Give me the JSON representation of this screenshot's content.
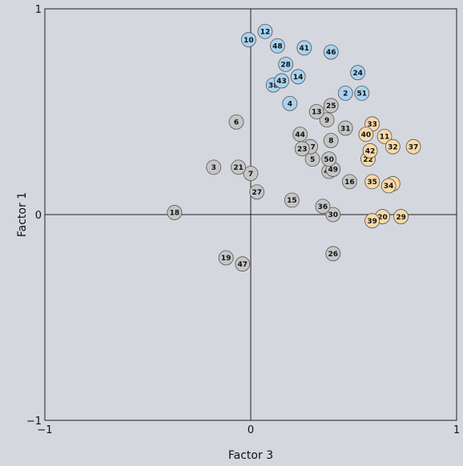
{
  "chart_data": {
    "type": "scatter",
    "xlabel": "Factor 3",
    "ylabel": "Factor 1",
    "xlim": [
      -1,
      1
    ],
    "ylim": [
      -1,
      1
    ],
    "x_ticks": [
      "−1",
      "0",
      "1"
    ],
    "y_ticks": [
      "−1",
      "0",
      "1"
    ],
    "grid": false,
    "zero_lines": true,
    "group_colors": {
      "blue": "#a8d3f0",
      "gray": "#c6c6c6",
      "orange": "#f8d9a8"
    },
    "points": [
      {
        "id": "1",
        "x": 0.69,
        "y": 0.15,
        "group": "orange"
      },
      {
        "id": "2",
        "x": 0.46,
        "y": 0.59,
        "group": "blue"
      },
      {
        "id": "3",
        "x": -0.18,
        "y": 0.23,
        "group": "gray"
      },
      {
        "id": "4",
        "x": 0.19,
        "y": 0.54,
        "group": "blue"
      },
      {
        "id": "5",
        "x": 0.3,
        "y": 0.27,
        "group": "gray"
      },
      {
        "id": "6",
        "x": -0.07,
        "y": 0.45,
        "group": "gray"
      },
      {
        "id": "7",
        "x": 0.0,
        "y": 0.2,
        "group": "gray"
      },
      {
        "id": "8",
        "x": 0.39,
        "y": 0.36,
        "group": "gray"
      },
      {
        "id": "9",
        "x": 0.37,
        "y": 0.46,
        "group": "gray"
      },
      {
        "id": "10",
        "x": -0.01,
        "y": 0.85,
        "group": "blue"
      },
      {
        "id": "11",
        "x": 0.65,
        "y": 0.38,
        "group": "orange"
      },
      {
        "id": "12",
        "x": 0.07,
        "y": 0.89,
        "group": "blue"
      },
      {
        "id": "13",
        "x": 0.32,
        "y": 0.5,
        "group": "gray"
      },
      {
        "id": "14",
        "x": 0.23,
        "y": 0.67,
        "group": "blue"
      },
      {
        "id": "15",
        "x": 0.2,
        "y": 0.07,
        "group": "gray"
      },
      {
        "id": "16",
        "x": 0.48,
        "y": 0.16,
        "group": "gray"
      },
      {
        "id": "17",
        "x": 0.29,
        "y": 0.33,
        "group": "gray"
      },
      {
        "id": "18",
        "x": -0.37,
        "y": 0.01,
        "group": "gray"
      },
      {
        "id": "19",
        "x": -0.12,
        "y": -0.21,
        "group": "gray"
      },
      {
        "id": "20",
        "x": 0.64,
        "y": -0.01,
        "group": "orange"
      },
      {
        "id": "21",
        "x": -0.06,
        "y": 0.23,
        "group": "gray"
      },
      {
        "id": "22",
        "x": 0.57,
        "y": 0.27,
        "group": "orange"
      },
      {
        "id": "23",
        "x": 0.25,
        "y": 0.32,
        "group": "gray"
      },
      {
        "id": "24",
        "x": 0.52,
        "y": 0.69,
        "group": "blue"
      },
      {
        "id": "25",
        "x": 0.39,
        "y": 0.53,
        "group": "gray"
      },
      {
        "id": "26",
        "x": 0.4,
        "y": -0.19,
        "group": "gray"
      },
      {
        "id": "27",
        "x": 0.03,
        "y": 0.11,
        "group": "gray"
      },
      {
        "id": "28",
        "x": 0.17,
        "y": 0.73,
        "group": "blue"
      },
      {
        "id": "29",
        "x": 0.73,
        "y": -0.01,
        "group": "orange"
      },
      {
        "id": "30",
        "x": 0.4,
        "y": 0.0,
        "group": "gray"
      },
      {
        "id": "31",
        "x": 0.46,
        "y": 0.42,
        "group": "gray"
      },
      {
        "id": "32",
        "x": 0.69,
        "y": 0.33,
        "group": "orange"
      },
      {
        "id": "33",
        "x": 0.59,
        "y": 0.44,
        "group": "orange"
      },
      {
        "id": "34",
        "x": 0.67,
        "y": 0.14,
        "group": "orange"
      },
      {
        "id": "35",
        "x": 0.59,
        "y": 0.16,
        "group": "orange"
      },
      {
        "id": "36",
        "x": 0.35,
        "y": 0.04,
        "group": "gray"
      },
      {
        "id": "37",
        "x": 0.79,
        "y": 0.33,
        "group": "orange"
      },
      {
        "id": "38",
        "x": 0.11,
        "y": 0.63,
        "group": "blue"
      },
      {
        "id": "39",
        "x": 0.59,
        "y": -0.03,
        "group": "orange"
      },
      {
        "id": "40",
        "x": 0.56,
        "y": 0.39,
        "group": "orange"
      },
      {
        "id": "41",
        "x": 0.26,
        "y": 0.81,
        "group": "blue"
      },
      {
        "id": "42",
        "x": 0.58,
        "y": 0.31,
        "group": "orange"
      },
      {
        "id": "43",
        "x": 0.15,
        "y": 0.65,
        "group": "blue"
      },
      {
        "id": "44",
        "x": 0.24,
        "y": 0.39,
        "group": "gray"
      },
      {
        "id": "45",
        "x": 0.38,
        "y": 0.21,
        "group": "gray"
      },
      {
        "id": "46",
        "x": 0.39,
        "y": 0.79,
        "group": "blue"
      },
      {
        "id": "47",
        "x": -0.04,
        "y": -0.24,
        "group": "gray"
      },
      {
        "id": "48",
        "x": 0.13,
        "y": 0.82,
        "group": "blue"
      },
      {
        "id": "49",
        "x": 0.4,
        "y": 0.22,
        "group": "gray"
      },
      {
        "id": "50",
        "x": 0.38,
        "y": 0.27,
        "group": "gray"
      },
      {
        "id": "51",
        "x": 0.54,
        "y": 0.59,
        "group": "blue"
      }
    ]
  }
}
